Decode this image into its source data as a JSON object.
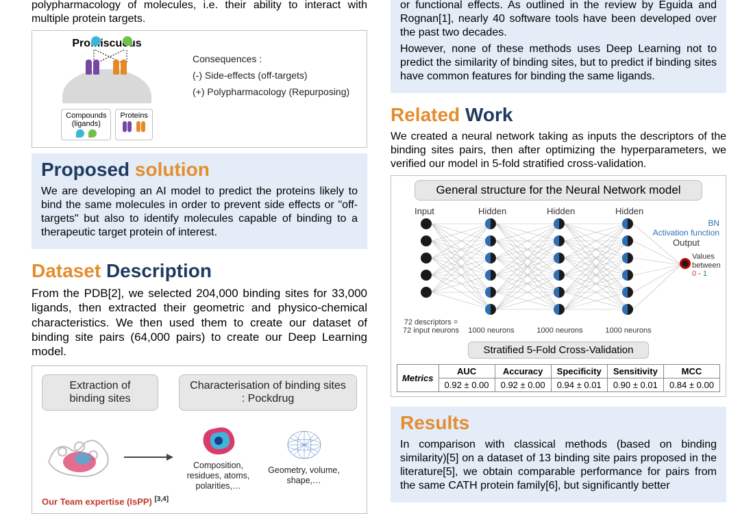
{
  "intro_partial": "polypharmacology of molecules, i.e. their ability to interact with multiple protein targets.",
  "promiscuous": {
    "title": "Promiscuous",
    "consequences_label": "Consequences :",
    "minus": "(-) Side-effects (off-targets)",
    "plus": "(+) Polypharmacology (Repurposing)",
    "legend_compounds": "Compounds\n(ligands)",
    "legend_proteins": "Proteins"
  },
  "proposed": {
    "heading_1": "Proposed",
    "heading_2": "solution",
    "body": "We are developing an AI model to predict the proteins likely to bind the same molecules in order to prevent side effects or \"off-targets\" but also to identify molecules capable of binding to a therapeutic target protein of interest."
  },
  "dataset": {
    "heading_1": "Dataset",
    "heading_2": "Description",
    "body": "From the PDB[2], we selected 204,000 binding sites for 33,000 ligands, then extracted their geometric and physico-chemical characteristics. We then used them to create our dataset of binding site pairs (64,000 pairs) to create our Deep Learning model.",
    "pill_left": "Extraction of binding sites",
    "pill_right": "Characterisation of binding sites : Pockdrug",
    "caption_mid": "Composition, residues, atoms, polarities,…",
    "caption_right": "Geometry, volume, shape,…",
    "team_red": "Our Team expertise (IsPP)",
    "team_sup": "[3,4]"
  },
  "right_top": {
    "body1": "or functional effects. As outlined in the review by Eguida and Rognan[1], nearly 40 software tools have been developed over the past two decades.",
    "body2": "However, none of these methods uses Deep Learning not to predict the similarity of binding sites, but to predict if binding sites have common features for binding the same ligands."
  },
  "related": {
    "heading_1": "Related",
    "heading_2": "Work",
    "body": "We created a neural network taking as inputs the descriptors of the binding sites pairs, then after optimizing the hyperparameters, we verified our model in 5-fold stratified cross-validation.",
    "nn_title": "General structure for the Neural Network model",
    "col_input": "Input",
    "col_hidden": "Hidden",
    "bn": "BN",
    "af": "Activation function",
    "output": "Output",
    "out_vals_1": "Values",
    "out_vals_2": "between",
    "out_vals_3a": "0",
    "out_vals_3b": " - ",
    "out_vals_3c": "1",
    "n72_1": "72 descriptors =",
    "n72_2": "72 input neurons",
    "nlabel": "1000 neurons",
    "cv": "Stratified 5-Fold Cross-Validation",
    "metrics_head": "Metrics",
    "cols": [
      "AUC",
      "Accuracy",
      "Specificity",
      "Sensitivity",
      "MCC"
    ],
    "vals": [
      "0.92 ± 0.00",
      "0.92 ± 0.00",
      "0.94 ± 0.01",
      "0.90 ± 0.01",
      "0.84 ± 0.00"
    ]
  },
  "results": {
    "heading": "Results",
    "body": "In comparison with classical methods (based on binding similarity)[5] on a dataset of 13 binding site pairs proposed in the literature[5], we obtain comparable performance for pairs from the same CATH protein family[6], but significantly better"
  },
  "colors": {
    "orange": "#e48d2f",
    "blue": "#3e5f8a",
    "bluebox": "#e3ecf7"
  }
}
